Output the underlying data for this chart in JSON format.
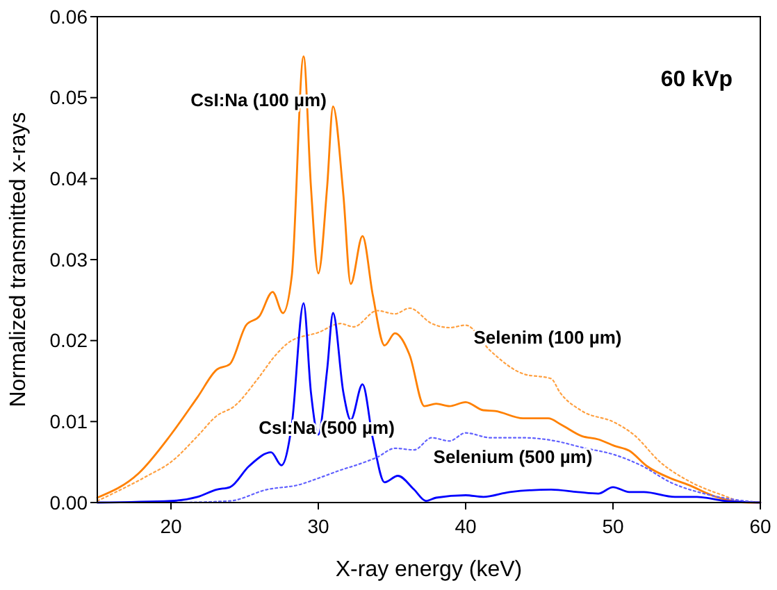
{
  "chart_data": {
    "type": "line",
    "xlabel": "X-ray energy (keV)",
    "ylabel": "Normalized transmitted x-rays",
    "xlim": [
      15,
      60
    ],
    "xticks": [
      20,
      30,
      40,
      50,
      60
    ],
    "ylim": [
      0,
      0.06
    ],
    "yticks": [
      {
        "value": 0,
        "label": "0.00"
      },
      {
        "value": 0.01,
        "label": "0.01"
      },
      {
        "value": 0.02,
        "label": "0.02"
      },
      {
        "value": 0.03,
        "label": "0.03"
      },
      {
        "value": 0.04,
        "label": "0.04"
      },
      {
        "value": 0.05,
        "label": "0.05"
      },
      {
        "value": 0.06,
        "label": "0.06"
      }
    ],
    "grid": false,
    "marker": "none",
    "series": [
      {
        "name": "CsI:Na (100 µm)",
        "color": "#ff8000",
        "line_style": "solid",
        "x": [
          15,
          17.8,
          20,
          21.8,
          23.1,
          24,
          25.1,
          26,
          26.9,
          27.6,
          28.2,
          29,
          29.5,
          30,
          30.6,
          31,
          31.7,
          32.2,
          33,
          33.7,
          34.5,
          35.2,
          36.2,
          37.2,
          38,
          38.9,
          40,
          41.2,
          42,
          43.9,
          45.6,
          46.5,
          47.9,
          49,
          50.1,
          51.1,
          52.3,
          53.9,
          55.1,
          57,
          59.2,
          60
        ],
        "values": [
          0.0006,
          0.0036,
          0.0084,
          0.013,
          0.0164,
          0.0171,
          0.0219,
          0.023,
          0.026,
          0.0234,
          0.028,
          0.0551,
          0.039,
          0.0283,
          0.039,
          0.0489,
          0.038,
          0.027,
          0.0329,
          0.0256,
          0.0194,
          0.0209,
          0.0182,
          0.0119,
          0.0122,
          0.0119,
          0.0124,
          0.0114,
          0.0113,
          0.0104,
          0.0104,
          0.0096,
          0.0082,
          0.0078,
          0.007,
          0.0064,
          0.0045,
          0.003,
          0.0022,
          0.0007,
          0,
          0
        ]
      },
      {
        "name": "Selenim (100 µm)",
        "color": "#ffa040",
        "line_style": "dotted",
        "x": [
          15,
          18.4,
          20,
          21.8,
          23.1,
          24.3,
          25.9,
          27.1,
          28.1,
          30,
          31.5,
          32.4,
          34,
          35.2,
          36.2,
          37.7,
          38.9,
          40,
          41.7,
          43.9,
          45.8,
          46.4,
          47.9,
          50.1,
          51.4,
          53.2,
          55.1,
          57.3,
          59.2,
          60
        ],
        "values": [
          0.0002,
          0.0033,
          0.005,
          0.0082,
          0.0107,
          0.0119,
          0.0153,
          0.0182,
          0.0199,
          0.021,
          0.0221,
          0.0217,
          0.0237,
          0.0233,
          0.024,
          0.0221,
          0.0216,
          0.0219,
          0.0187,
          0.0159,
          0.0153,
          0.0136,
          0.0113,
          0.0099,
          0.0084,
          0.005,
          0.0027,
          0.001,
          0,
          0
        ]
      },
      {
        "name": "CsI:Na (500 µm)",
        "color": "#0000ff",
        "line_style": "solid",
        "x": [
          15,
          20,
          21.8,
          23.1,
          24,
          25.3,
          26.8,
          27.5,
          28.2,
          29,
          29.5,
          30,
          30.6,
          31,
          31.7,
          32.2,
          33,
          33.7,
          34.5,
          35.4,
          36.5,
          37.3,
          38,
          40,
          41.2,
          43,
          45.8,
          47.6,
          49,
          50,
          51.1,
          52.1,
          54.2,
          55.7,
          57.6,
          60
        ],
        "values": [
          0,
          0.0002,
          0.0007,
          0.0016,
          0.0019,
          0.0045,
          0.0062,
          0.0046,
          0.0096,
          0.0246,
          0.0136,
          0.0084,
          0.0164,
          0.0234,
          0.0136,
          0.0102,
          0.0146,
          0.0079,
          0.0025,
          0.0033,
          0.0016,
          0.0002,
          0.0006,
          0.0009,
          0.0007,
          0.0013,
          0.0016,
          0.0013,
          0.0011,
          0.0019,
          0.0013,
          0.0013,
          0.0007,
          0.0007,
          0.0002,
          0
        ]
      },
      {
        "name": "Selenium (500 µm)",
        "color": "#6060ff",
        "line_style": "dotted",
        "x": [
          15,
          20,
          24,
          26.5,
          28.7,
          30,
          31.5,
          32.7,
          34,
          35.2,
          36.5,
          37.7,
          38.9,
          40,
          41.7,
          43.9,
          46.1,
          47.9,
          50.1,
          52,
          53.9,
          56.4,
          60
        ],
        "values": [
          0,
          0,
          0.0002,
          0.0016,
          0.0022,
          0.003,
          0.004,
          0.0047,
          0.0056,
          0.0067,
          0.0065,
          0.008,
          0.0076,
          0.0086,
          0.008,
          0.008,
          0.0076,
          0.0068,
          0.0059,
          0.0045,
          0.0025,
          0.001,
          0
        ]
      }
    ],
    "annotations": [
      "60 kVp"
    ]
  }
}
